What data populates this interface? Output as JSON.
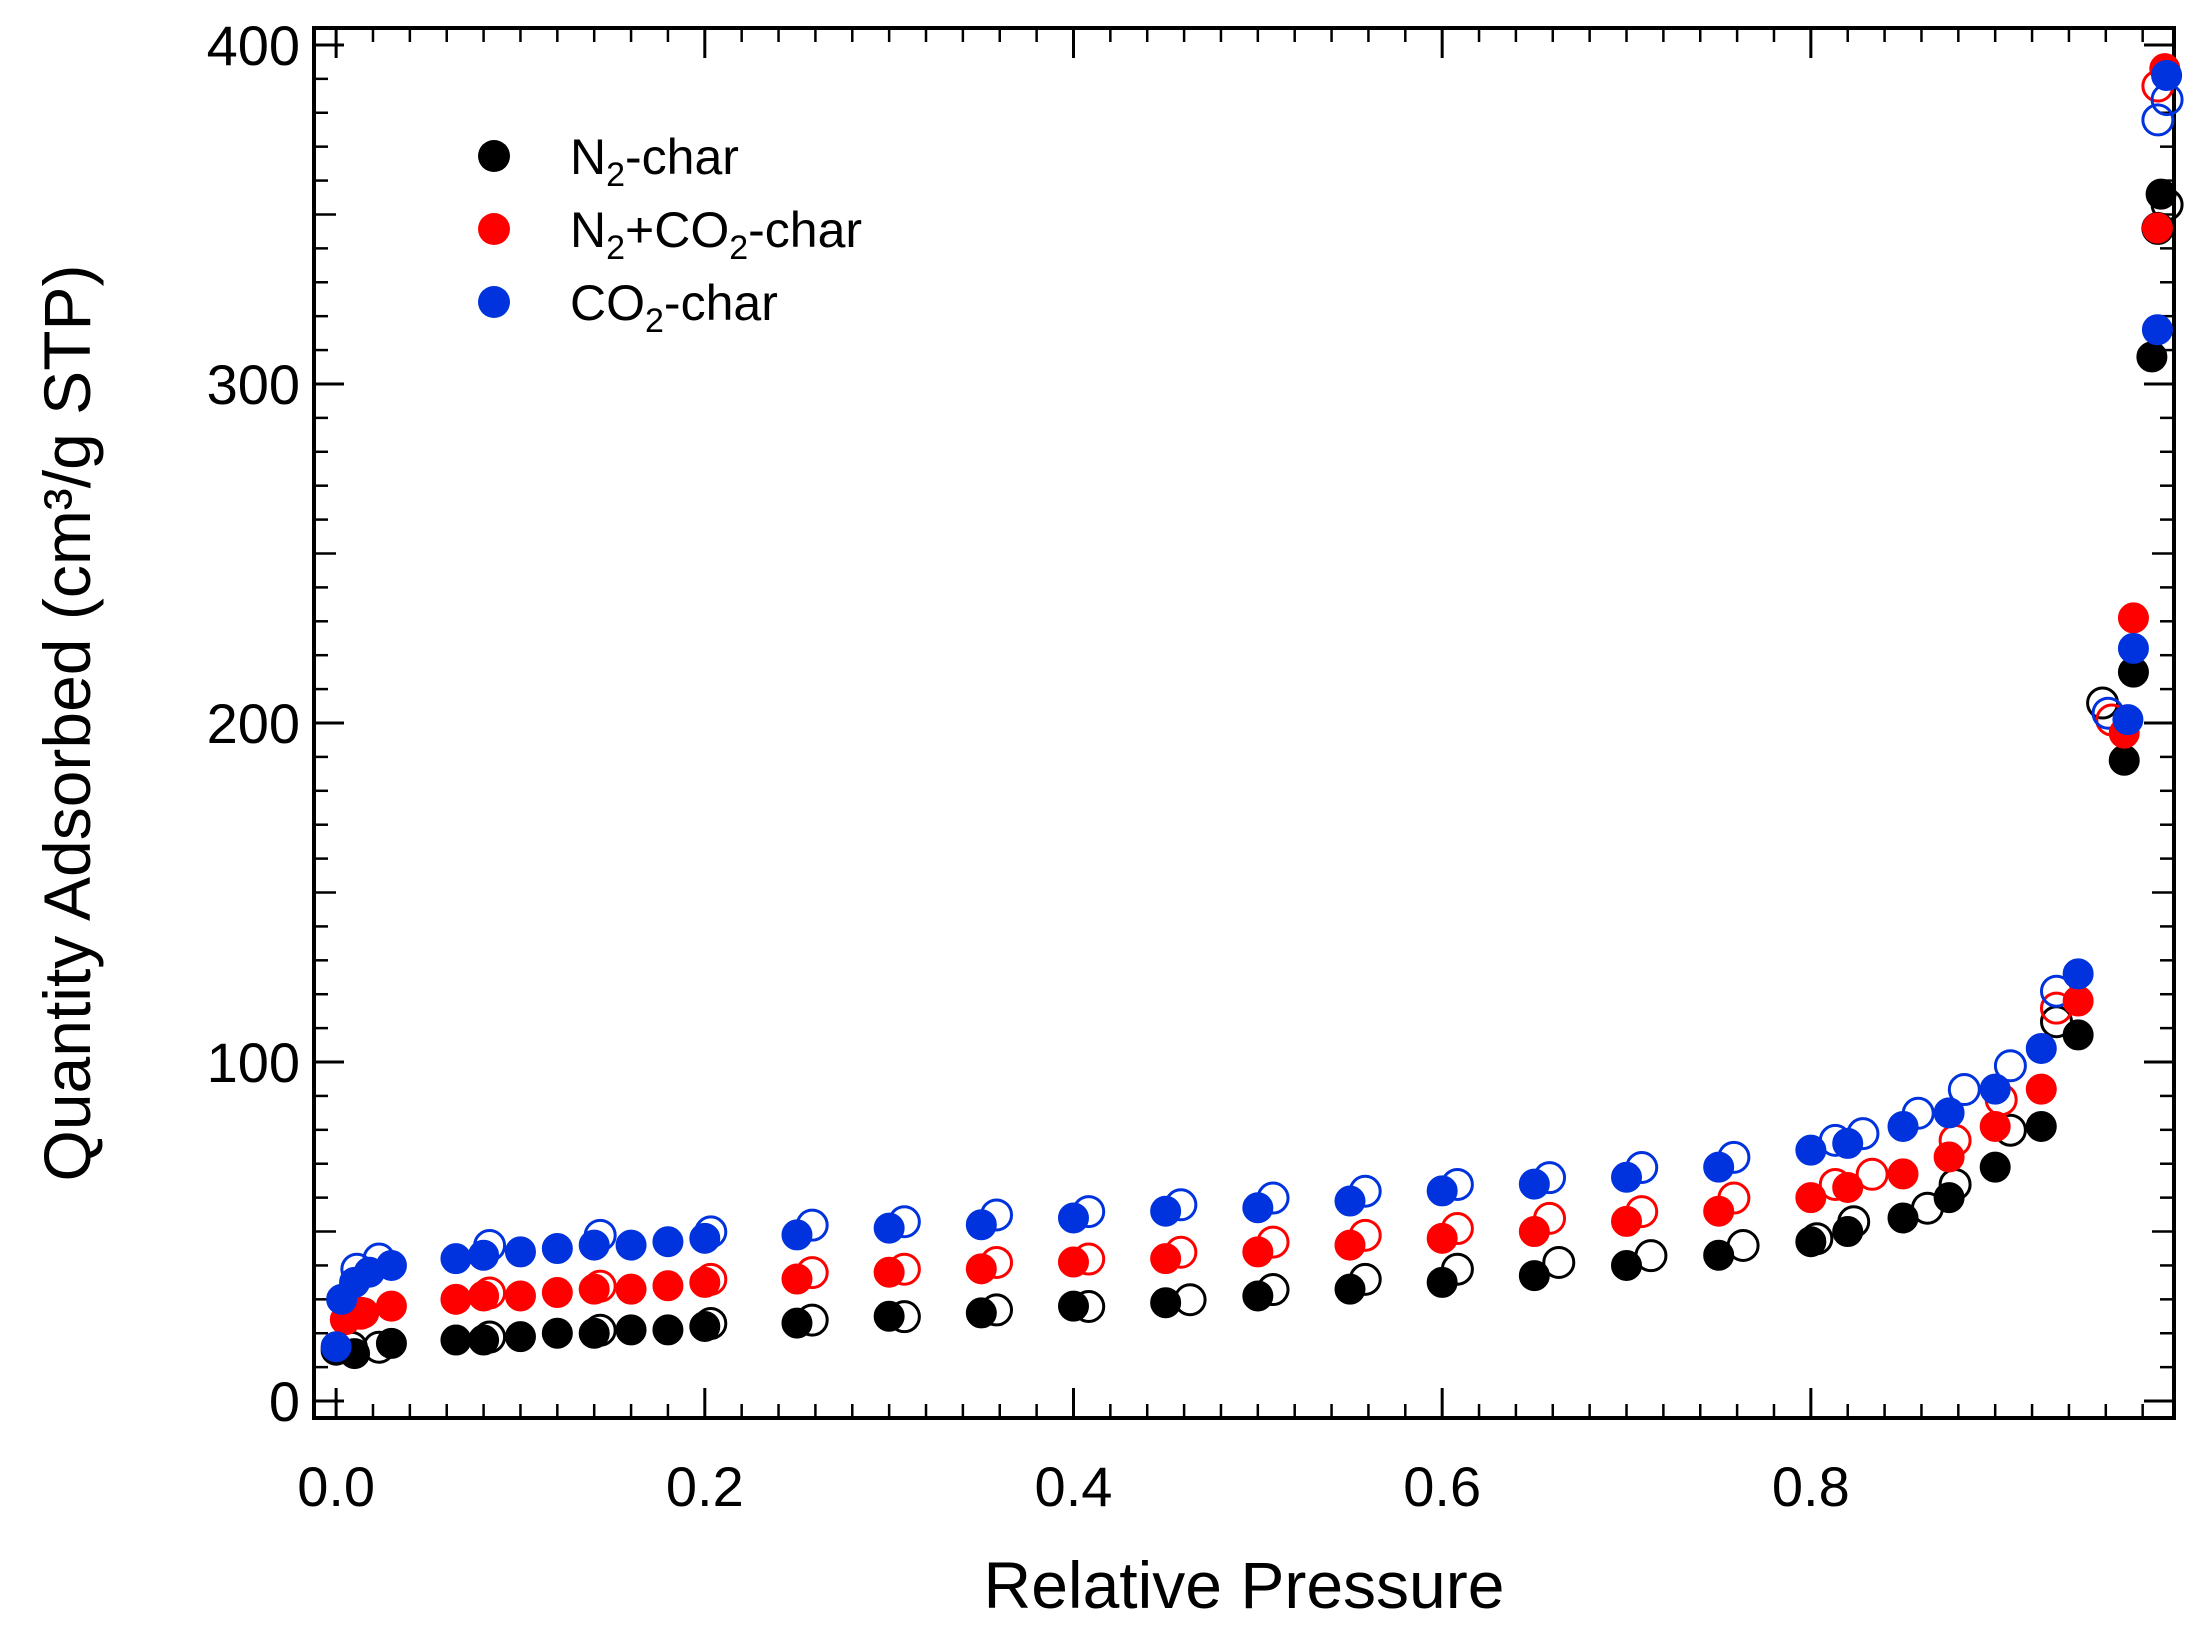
{
  "chart_data": {
    "type": "scatter",
    "title": "",
    "xlabel": "Relative Pressure",
    "ylabel": "Quantity Adsorbed (cm³/g STP)",
    "xlim": [
      -0.012,
      0.997
    ],
    "ylim": [
      -5,
      405
    ],
    "xticks": [
      0.0,
      0.2,
      0.4,
      0.6,
      0.8
    ],
    "xtick_labels": [
      "0.0",
      "0.2",
      "0.4",
      "0.6",
      "0.8"
    ],
    "yticks": [
      0,
      100,
      200,
      300,
      400
    ],
    "ytick_labels": [
      "0",
      "100",
      "200",
      "300",
      "400"
    ],
    "legend_position": "top-left",
    "filled_marker": "adsorption",
    "open_marker": "desorption",
    "series": [
      {
        "name": "N2-char",
        "legend": {
          "pre": "N",
          "sub": "2",
          "post": "-char"
        },
        "color": "#000000",
        "adsorption": [
          [
            0.0,
            15
          ],
          [
            0.01,
            14
          ],
          [
            0.03,
            17
          ],
          [
            0.065,
            18
          ],
          [
            0.08,
            18
          ],
          [
            0.1,
            19
          ],
          [
            0.12,
            20
          ],
          [
            0.14,
            20
          ],
          [
            0.16,
            21
          ],
          [
            0.18,
            21
          ],
          [
            0.2,
            22
          ],
          [
            0.25,
            23
          ],
          [
            0.3,
            25
          ],
          [
            0.35,
            26
          ],
          [
            0.4,
            28
          ],
          [
            0.45,
            29
          ],
          [
            0.5,
            31
          ],
          [
            0.55,
            33
          ],
          [
            0.6,
            35
          ],
          [
            0.65,
            37
          ],
          [
            0.7,
            40
          ],
          [
            0.75,
            43
          ],
          [
            0.8,
            47
          ],
          [
            0.82,
            50
          ],
          [
            0.85,
            54
          ],
          [
            0.875,
            60
          ],
          [
            0.9,
            69
          ],
          [
            0.925,
            81
          ],
          [
            0.945,
            108
          ],
          [
            0.97,
            189
          ],
          [
            0.975,
            215
          ],
          [
            0.985,
            308
          ],
          [
            0.99,
            356
          ]
        ],
        "desorption": [
          [
            0.005,
            15
          ],
          [
            0.02,
            15
          ],
          [
            0.08,
            18
          ],
          [
            0.14,
            20
          ],
          [
            0.2,
            22
          ],
          [
            0.255,
            23
          ],
          [
            0.305,
            24
          ],
          [
            0.355,
            26
          ],
          [
            0.405,
            27
          ],
          [
            0.46,
            29
          ],
          [
            0.505,
            32
          ],
          [
            0.555,
            35
          ],
          [
            0.605,
            38
          ],
          [
            0.66,
            40
          ],
          [
            0.71,
            42
          ],
          [
            0.76,
            45
          ],
          [
            0.8,
            47
          ],
          [
            0.82,
            52
          ],
          [
            0.86,
            56
          ],
          [
            0.875,
            63
          ],
          [
            0.905,
            79
          ],
          [
            0.93,
            111
          ],
          [
            0.955,
            205
          ],
          [
            0.985,
            345
          ],
          [
            0.99,
            352
          ]
        ]
      },
      {
        "name": "N2+CO2-char",
        "legend": {
          "pre": "N",
          "sub": "2",
          "post": "+CO",
          "sub2": "2",
          "post2": "-char"
        },
        "color": "#ff0000",
        "adsorption": [
          [
            0.005,
            24
          ],
          [
            0.015,
            26
          ],
          [
            0.03,
            28
          ],
          [
            0.065,
            30
          ],
          [
            0.08,
            31
          ],
          [
            0.1,
            31
          ],
          [
            0.12,
            32
          ],
          [
            0.14,
            33
          ],
          [
            0.16,
            33
          ],
          [
            0.18,
            34
          ],
          [
            0.2,
            35
          ],
          [
            0.25,
            36
          ],
          [
            0.3,
            38
          ],
          [
            0.35,
            39
          ],
          [
            0.4,
            41
          ],
          [
            0.45,
            42
          ],
          [
            0.5,
            44
          ],
          [
            0.55,
            46
          ],
          [
            0.6,
            48
          ],
          [
            0.65,
            50
          ],
          [
            0.7,
            53
          ],
          [
            0.75,
            56
          ],
          [
            0.8,
            60
          ],
          [
            0.82,
            63
          ],
          [
            0.85,
            67
          ],
          [
            0.875,
            72
          ],
          [
            0.9,
            81
          ],
          [
            0.925,
            92
          ],
          [
            0.945,
            118
          ],
          [
            0.97,
            197
          ],
          [
            0.975,
            231
          ],
          [
            0.988,
            346
          ],
          [
            0.992,
            393
          ]
        ],
        "desorption": [
          [
            0.01,
            25
          ],
          [
            0.08,
            31
          ],
          [
            0.14,
            33
          ],
          [
            0.2,
            35
          ],
          [
            0.255,
            37
          ],
          [
            0.305,
            38
          ],
          [
            0.355,
            40
          ],
          [
            0.405,
            41
          ],
          [
            0.455,
            43
          ],
          [
            0.505,
            46
          ],
          [
            0.555,
            48
          ],
          [
            0.605,
            50
          ],
          [
            0.655,
            53
          ],
          [
            0.705,
            55
          ],
          [
            0.755,
            59
          ],
          [
            0.81,
            63
          ],
          [
            0.83,
            66
          ],
          [
            0.875,
            76
          ],
          [
            0.9,
            88
          ],
          [
            0.93,
            115
          ],
          [
            0.96,
            200
          ],
          [
            0.985,
            387
          ]
        ]
      },
      {
        "name": "CO2-char",
        "legend": {
          "pre": "CO",
          "sub": "2",
          "post": "-char"
        },
        "color": "#0033dd",
        "adsorption": [
          [
            0.0,
            16
          ],
          [
            0.003,
            30
          ],
          [
            0.01,
            35
          ],
          [
            0.018,
            38
          ],
          [
            0.03,
            40
          ],
          [
            0.065,
            42
          ],
          [
            0.08,
            43
          ],
          [
            0.1,
            44
          ],
          [
            0.12,
            45
          ],
          [
            0.14,
            46
          ],
          [
            0.16,
            46
          ],
          [
            0.18,
            47
          ],
          [
            0.2,
            48
          ],
          [
            0.25,
            49
          ],
          [
            0.3,
            51
          ],
          [
            0.35,
            52
          ],
          [
            0.4,
            54
          ],
          [
            0.45,
            56
          ],
          [
            0.5,
            57
          ],
          [
            0.55,
            59
          ],
          [
            0.6,
            62
          ],
          [
            0.65,
            64
          ],
          [
            0.7,
            66
          ],
          [
            0.75,
            69
          ],
          [
            0.8,
            74
          ],
          [
            0.82,
            76
          ],
          [
            0.85,
            81
          ],
          [
            0.875,
            85
          ],
          [
            0.9,
            92
          ],
          [
            0.925,
            104
          ],
          [
            0.945,
            126
          ],
          [
            0.972,
            201
          ],
          [
            0.975,
            222
          ],
          [
            0.988,
            316
          ],
          [
            0.993,
            391
          ]
        ],
        "desorption": [
          [
            0.008,
            38
          ],
          [
            0.02,
            41
          ],
          [
            0.08,
            45
          ],
          [
            0.14,
            48
          ],
          [
            0.2,
            49
          ],
          [
            0.255,
            51
          ],
          [
            0.305,
            52
          ],
          [
            0.355,
            54
          ],
          [
            0.405,
            55
          ],
          [
            0.455,
            57
          ],
          [
            0.505,
            59
          ],
          [
            0.555,
            61
          ],
          [
            0.605,
            63
          ],
          [
            0.655,
            65
          ],
          [
            0.705,
            68
          ],
          [
            0.755,
            71
          ],
          [
            0.81,
            76
          ],
          [
            0.825,
            78
          ],
          [
            0.855,
            84
          ],
          [
            0.88,
            91
          ],
          [
            0.905,
            98
          ],
          [
            0.93,
            120
          ],
          [
            0.958,
            202
          ],
          [
            0.985,
            377
          ],
          [
            0.99,
            383
          ]
        ]
      }
    ]
  }
}
